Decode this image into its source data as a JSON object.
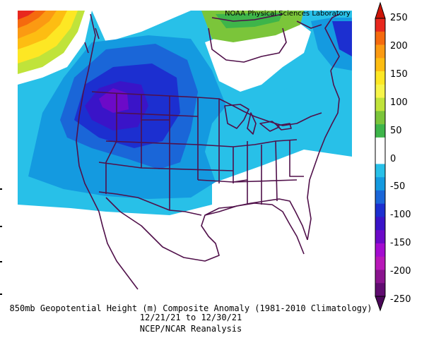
{
  "credit": "NOAA Physical Sciences Laboratory",
  "caption": {
    "title": "850mb Geopotential Height (m) Composite Anomaly (1981-2010 Climatology)",
    "date_range": "12/21/21  to 12/30/21",
    "source": "NCEP/NCAR Reanalysis"
  },
  "colorbar": {
    "labels": [
      "250",
      "200",
      "150",
      "100",
      "50",
      "0",
      "-50",
      "-100",
      "-150",
      "-200",
      "-250"
    ],
    "colors": [
      "#e8281e",
      "#f56a0e",
      "#fb9a12",
      "#fdbd12",
      "#fde724",
      "#f7f54a",
      "#c0e33a",
      "#7bc53a",
      "#3eb54a",
      "#ffffff",
      "#ffffff",
      "#28c0e8",
      "#149ae0",
      "#1a66d8",
      "#1c2fd0",
      "#3a14c8",
      "#6c0ac8",
      "#a40cd0",
      "#b818b8",
      "#8a148e",
      "#600c70"
    ],
    "arrow_top": "#cc1408",
    "arrow_bottom": "#4a0858"
  },
  "map": {
    "units": "m",
    "land_outline_color": "#50104a"
  }
}
